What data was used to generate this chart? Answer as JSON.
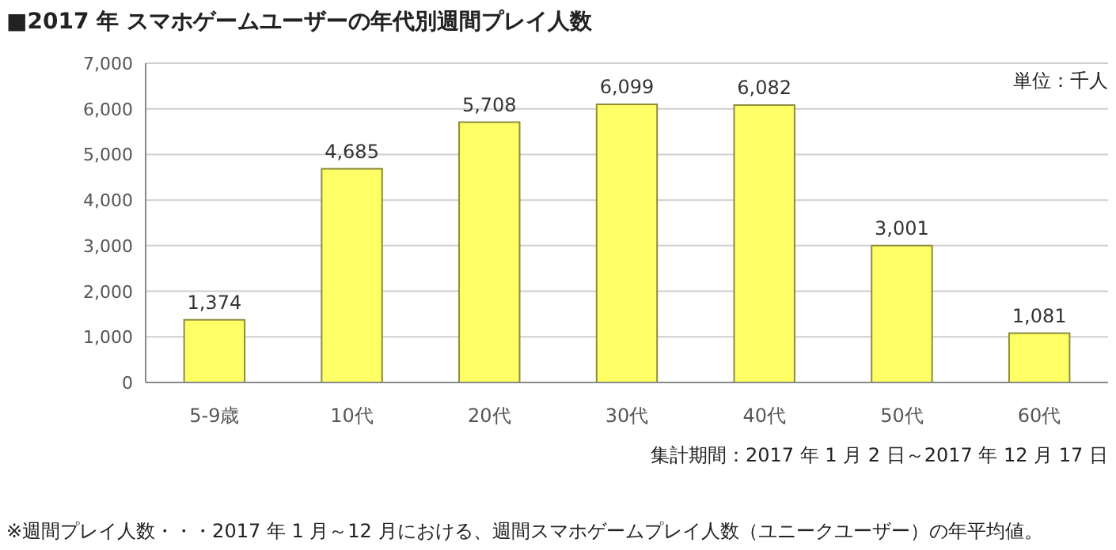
{
  "chart_data": {
    "type": "bar",
    "title": "■2017 年 スマホゲームユーザーの年代別週間プレイ人数",
    "categories": [
      "5-9歳",
      "10代",
      "20代",
      "30代",
      "40代",
      "50代",
      "60代"
    ],
    "values": [
      1374,
      4685,
      5708,
      6099,
      6082,
      3001,
      1081
    ],
    "color": "#ffff66",
    "ylim": [
      0,
      7000
    ],
    "yticks": [
      {
        "value": 0,
        "label": "0"
      },
      {
        "value": 1000,
        "label": "1,000"
      },
      {
        "value": 2000,
        "label": "2,000"
      },
      {
        "value": 3000,
        "label": "3,000"
      },
      {
        "value": 4000,
        "label": "4,000"
      },
      {
        "value": 5000,
        "label": "5,000"
      },
      {
        "value": 6000,
        "label": "6,000"
      },
      {
        "value": 7000,
        "label": "7,000"
      }
    ],
    "value_labels": [
      "1,374",
      "4,685",
      "5,708",
      "6,099",
      "6,082",
      "3,001",
      "1,081"
    ],
    "grid": "y",
    "annotations": [
      "単位：千人",
      "集計期間：2017 年 1 月 2 日～2017 年 12 月 17 日",
      "※週間プレイ人数・・・2017 年 1 月～12 月における、週間スマホゲームプレイ人数（ユニークユーザー）の年平均値。"
    ]
  }
}
